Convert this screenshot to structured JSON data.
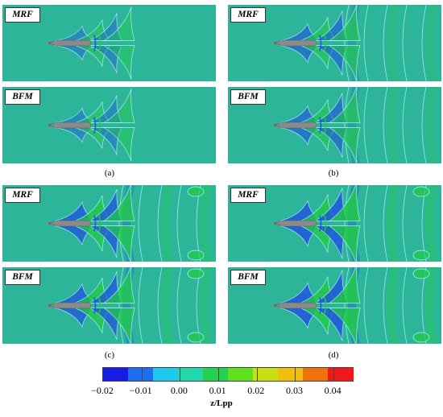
{
  "panels": [
    {
      "id": "a",
      "label": "(a)",
      "top_tag": "MRF",
      "bottom_tag": "BFM",
      "wave_strength": 0.3
    },
    {
      "id": "b",
      "label": "(b)",
      "top_tag": "MRF",
      "bottom_tag": "BFM",
      "wave_strength": 0.6
    },
    {
      "id": "c",
      "label": "(c)",
      "top_tag": "MRF",
      "bottom_tag": "BFM",
      "wave_strength": 0.85
    },
    {
      "id": "d",
      "label": "(d)",
      "top_tag": "MRF",
      "bottom_tag": "BFM",
      "wave_strength": 1.0
    }
  ],
  "colorbar": {
    "title": "z/Lpp",
    "ticks": [
      "−0.02",
      "−0.01",
      "0.00",
      "0.01",
      "0.02",
      "0.03",
      "0.04"
    ],
    "colors": [
      "#1a1ae6",
      "#1e6cf0",
      "#20c8f0",
      "#20d8a8",
      "#28d050",
      "#60e020",
      "#c8e010",
      "#f0c010",
      "#f07010",
      "#f01818"
    ]
  },
  "colors": {
    "background_field": "#2db59a",
    "hull": "#8a8a8a",
    "trough": "#1e50e0",
    "crest": "#22cc44",
    "contour": "#b8f0ff"
  }
}
